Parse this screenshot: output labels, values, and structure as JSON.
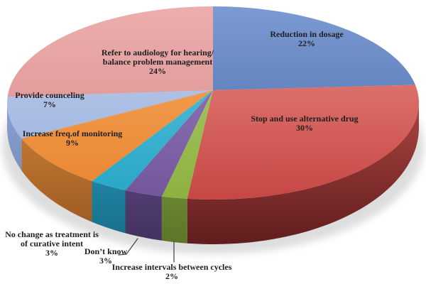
{
  "figure": {
    "background_color": "#ffffff",
    "label_text_color": "#1f1f1f",
    "leader_line_color": "#4a4a4a"
  },
  "chart_data": {
    "type": "pie",
    "variant": "3d",
    "title": "",
    "start_angle_deg": 0,
    "direction": "clockwise",
    "legend": "none",
    "labels_on_chart": true,
    "slices": [
      {
        "id": "reduction-in-dosage",
        "label": "Reduction in dosage",
        "value": 22,
        "pct_label": "22%",
        "label_lines": [
          "Reduction in dosage",
          "22%"
        ],
        "color": "#4d77b5",
        "top_light": "#7e9cd4",
        "top_dark": "#3f63a4",
        "wall_top": null,
        "wall_bottom": null
      },
      {
        "id": "stop-and-use-alternative-drug",
        "label": "Stop and use alternative drug",
        "value": 30,
        "pct_label": "30%",
        "label_lines": [
          "Stop and use alternative drug",
          "30%"
        ],
        "color": "#d4534f",
        "top_light": "#ec8d85",
        "top_dark": "#c2403e",
        "wall_top": "#a84340",
        "wall_bottom": "#5e1c1c"
      },
      {
        "id": "increase-intervals-between-cycles",
        "label": "Increase intervals between cycles",
        "value": 2,
        "pct_label": "2%",
        "label_lines": [
          "Increase intervals between cycles",
          "2%"
        ],
        "color": "#97bc4a",
        "top_light": "#b3cf74",
        "top_dark": "#88ae3b",
        "wall_top": "#83a240",
        "wall_bottom": "#5a7428"
      },
      {
        "id": "dont-know",
        "label": "Don’t know",
        "value": 3,
        "pct_label": "3%",
        "label_lines": [
          "Don’t know",
          "3%"
        ],
        "color": "#7e62a8",
        "top_light": "#9c84c2",
        "top_dark": "#6d5198",
        "wall_top": "#69508f",
        "wall_bottom": "#41305e"
      },
      {
        "id": "no-change-curative-intent",
        "label": "No change as treatment is of curative intent",
        "value": 3,
        "pct_label": "3%",
        "label_lines": [
          "No change as treatment is",
          "of curative intent",
          "3%"
        ],
        "color": "#33b3d1",
        "top_light": "#63c8de",
        "top_dark": "#21a2c4",
        "wall_top": "#2a9aba",
        "wall_bottom": "#156d88"
      },
      {
        "id": "increase-freq-of-monitoring",
        "label": "Increase freq.of monitoring",
        "value": 9,
        "pct_label": "9%",
        "label_lines": [
          "Increase freq.of monitoring",
          "9%"
        ],
        "color": "#f0913c",
        "top_light": "#f6ab62",
        "top_dark": "#e8812a",
        "wall_top": "#cd8037",
        "wall_bottom": "#95551f"
      },
      {
        "id": "provide-counceling",
        "label": "Provide counceling",
        "value": 7,
        "pct_label": "7%",
        "label_lines": [
          "Provide counceling",
          "7%"
        ],
        "color": "#a9bee5",
        "top_light": "#c1d0ee",
        "top_dark": "#94abd9",
        "wall_top": "#8aa0d0",
        "wall_bottom": "#667ca9"
      },
      {
        "id": "refer-to-audiology",
        "label": "Refer to audiology for hearing/ balance problem management",
        "value": 24,
        "pct_label": "24%",
        "label_lines": [
          "Refer to audiology for hearing/",
          "balance problem management",
          "24%"
        ],
        "color": "#df9697",
        "top_light": "#edb0af",
        "top_dark": "#d48384",
        "wall_top": null,
        "wall_bottom": null
      }
    ]
  }
}
